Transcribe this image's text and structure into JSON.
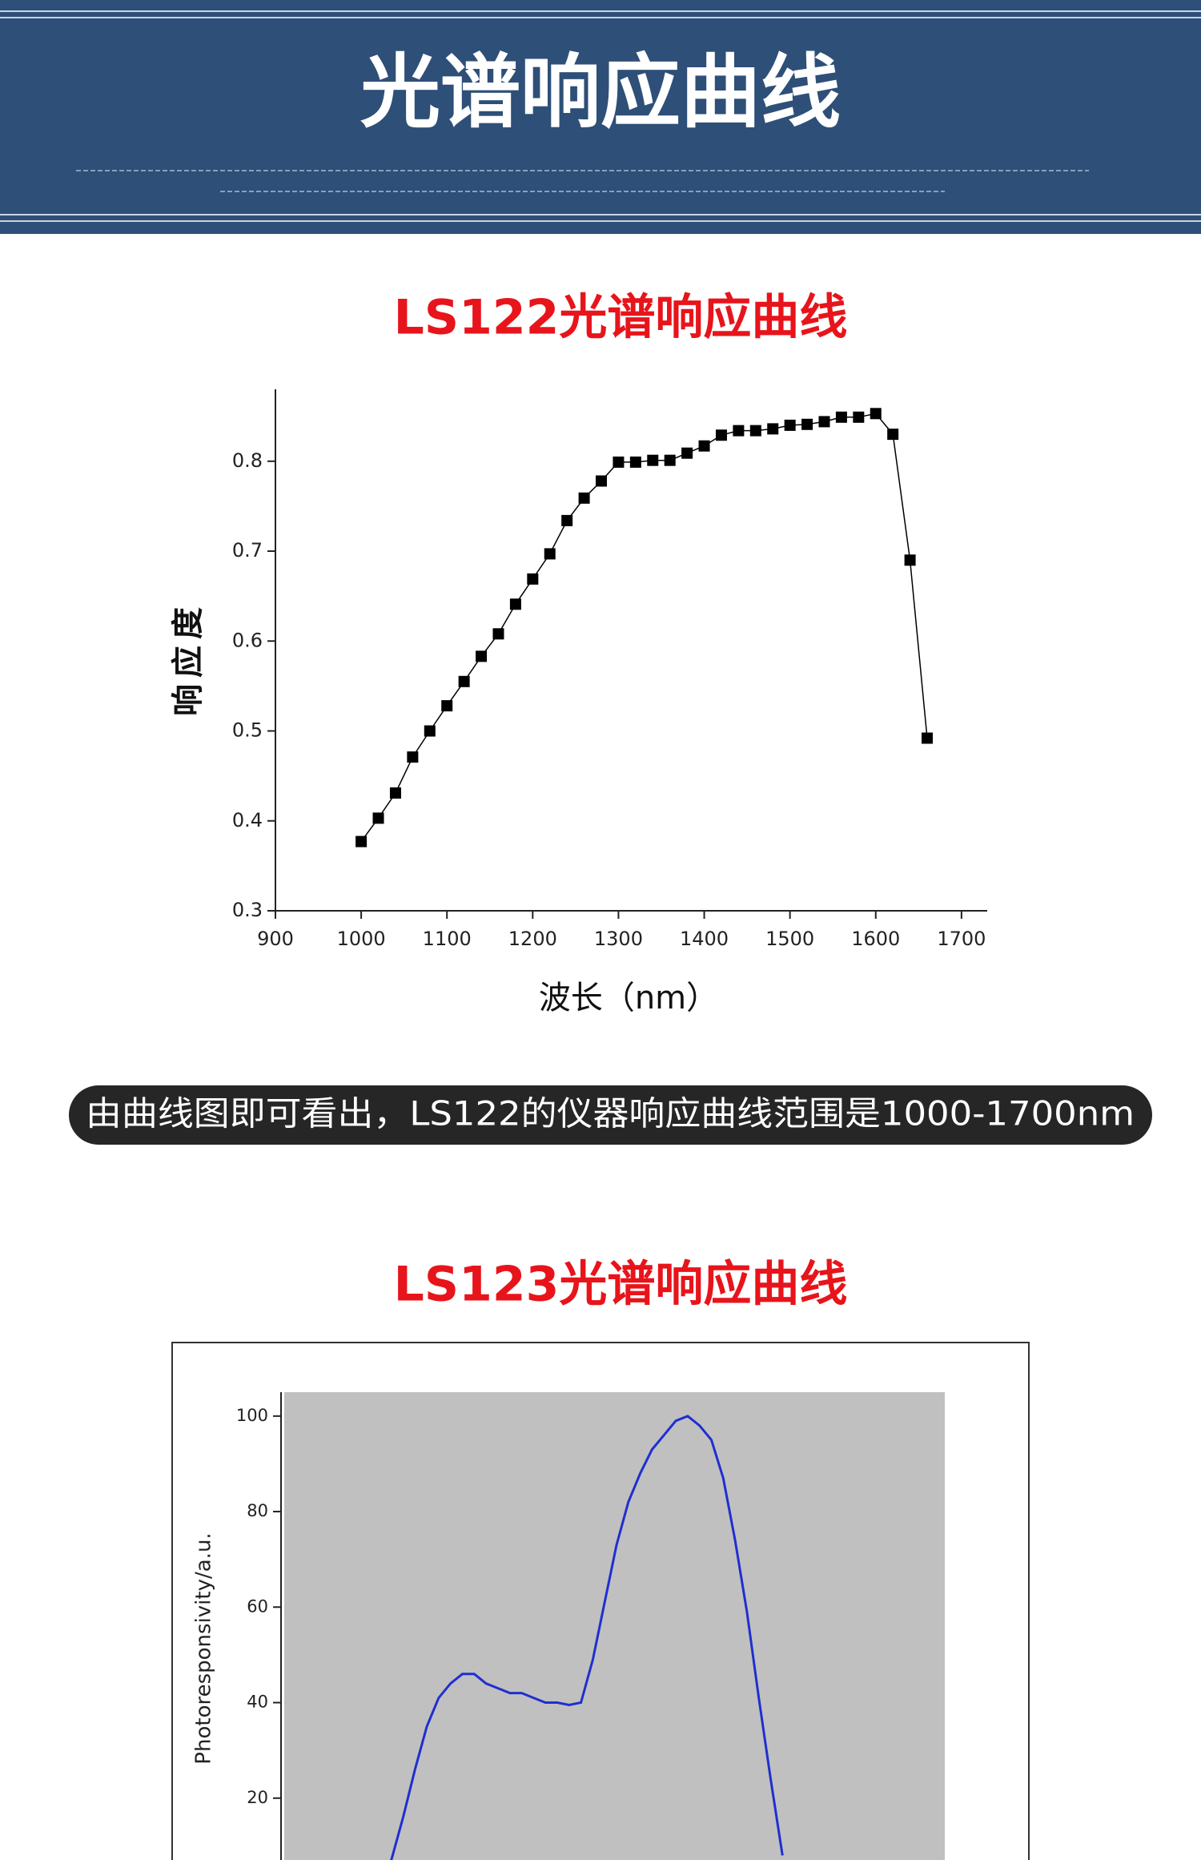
{
  "header": {
    "title": "光谱响应曲线"
  },
  "caption": "由曲线图即可看出，LS122的仪器响应曲线范围是1000-1700nm",
  "chart_data": [
    {
      "type": "line",
      "title": "LS122光谱响应曲线",
      "x_label": "波长（nm）",
      "y_label": "响应度",
      "markers": "square",
      "color": "#000000",
      "x": [
        1000,
        1020,
        1040,
        1060,
        1080,
        1100,
        1120,
        1140,
        1160,
        1180,
        1200,
        1220,
        1240,
        1260,
        1280,
        1300,
        1320,
        1340,
        1360,
        1380,
        1400,
        1420,
        1440,
        1460,
        1480,
        1500,
        1520,
        1540,
        1560,
        1580,
        1600,
        1620,
        1640,
        1660
      ],
      "values": [
        0.377,
        0.403,
        0.431,
        0.471,
        0.5,
        0.528,
        0.555,
        0.583,
        0.608,
        0.641,
        0.669,
        0.697,
        0.734,
        0.759,
        0.778,
        0.799,
        0.799,
        0.801,
        0.801,
        0.809,
        0.817,
        0.829,
        0.834,
        0.834,
        0.836,
        0.84,
        0.841,
        0.844,
        0.849,
        0.849,
        0.853,
        0.83,
        0.69,
        0.492
      ],
      "xlim": [
        900,
        1730
      ],
      "ylim": [
        0.3,
        0.88
      ],
      "xticks": [
        900,
        1000,
        1100,
        1200,
        1300,
        1400,
        1500,
        1600,
        1700
      ],
      "yticks": [
        0.3,
        0.4,
        0.5,
        0.6,
        0.7,
        0.8
      ]
    },
    {
      "type": "line",
      "title": "LS123光谱响应曲线",
      "y_label": "Photoresponsivity/a.u.",
      "color": "#1f2fd0",
      "background": "#c0c0c0",
      "values": [
        7,
        16,
        26,
        35,
        41,
        44,
        46,
        46,
        44,
        43,
        42,
        42,
        41,
        40,
        40,
        39.5,
        40,
        49,
        61,
        73,
        82,
        88,
        93,
        96,
        99,
        100,
        98,
        95,
        87,
        74,
        59,
        41,
        24,
        8
      ],
      "ylim": [
        0,
        105
      ],
      "yticks": [
        20,
        40,
        60,
        80,
        100
      ]
    }
  ]
}
